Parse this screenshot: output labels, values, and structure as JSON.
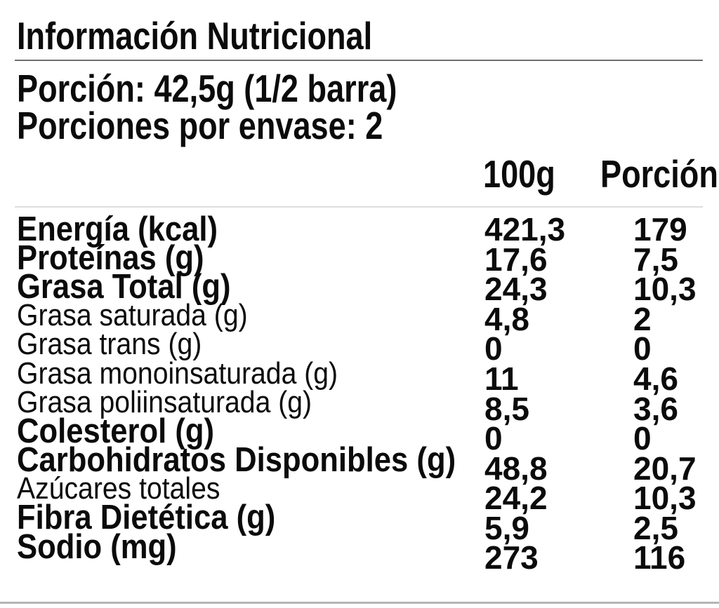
{
  "label": {
    "title": "Información Nutricional",
    "serving_size": "Porción: 42,5g (1/2 barra)",
    "servings_per_container": "Porciones por envase: 2"
  },
  "table": {
    "columns": {
      "per_100g": "100g",
      "per_portion": "Porción"
    },
    "rows": [
      {
        "label": "Energía (kcal)",
        "per_100g": "421,3",
        "per_portion": "179",
        "emphasis": "bold"
      },
      {
        "label": "Proteínas (g)",
        "per_100g": "17,6",
        "per_portion": "7,5",
        "emphasis": "bold"
      },
      {
        "label": "Grasa Total (g)",
        "per_100g": "24,3",
        "per_portion": "10,3",
        "emphasis": "bold"
      },
      {
        "label": "Grasa saturada (g)",
        "per_100g": "4,8",
        "per_portion": "2",
        "emphasis": "regular"
      },
      {
        "label": "Grasa trans (g)",
        "per_100g": "0",
        "per_portion": "0",
        "emphasis": "regular"
      },
      {
        "label": "Grasa monoinsaturada (g)",
        "per_100g": "11",
        "per_portion": "4,6",
        "emphasis": "regular"
      },
      {
        "label": "Grasa poliinsaturada (g)",
        "per_100g": "8,5",
        "per_portion": "3,6",
        "emphasis": "regular"
      },
      {
        "label": "Colesterol (g)",
        "per_100g": "0",
        "per_portion": "0",
        "emphasis": "bold"
      },
      {
        "label": "Carbohidratos Disponibles (g)",
        "per_100g": "48,8",
        "per_portion": "20,7",
        "emphasis": "bold"
      },
      {
        "label": "Azúcares totales",
        "per_100g": "24,2",
        "per_portion": "10,3",
        "emphasis": "regular"
      },
      {
        "label": "Fibra Dietética (g)",
        "per_100g": "5,9",
        "per_portion": "2,5",
        "emphasis": "bold"
      },
      {
        "label": "Sodio (mg)",
        "per_100g": "273",
        "per_portion": "116",
        "emphasis": "bold"
      }
    ]
  },
  "colors": {
    "text": "#0b0b0b",
    "background": "#ffffff",
    "title_rule": "#6f6f6f",
    "header_rule": "#dedede",
    "bottom_rule": "#b5b5b5"
  }
}
